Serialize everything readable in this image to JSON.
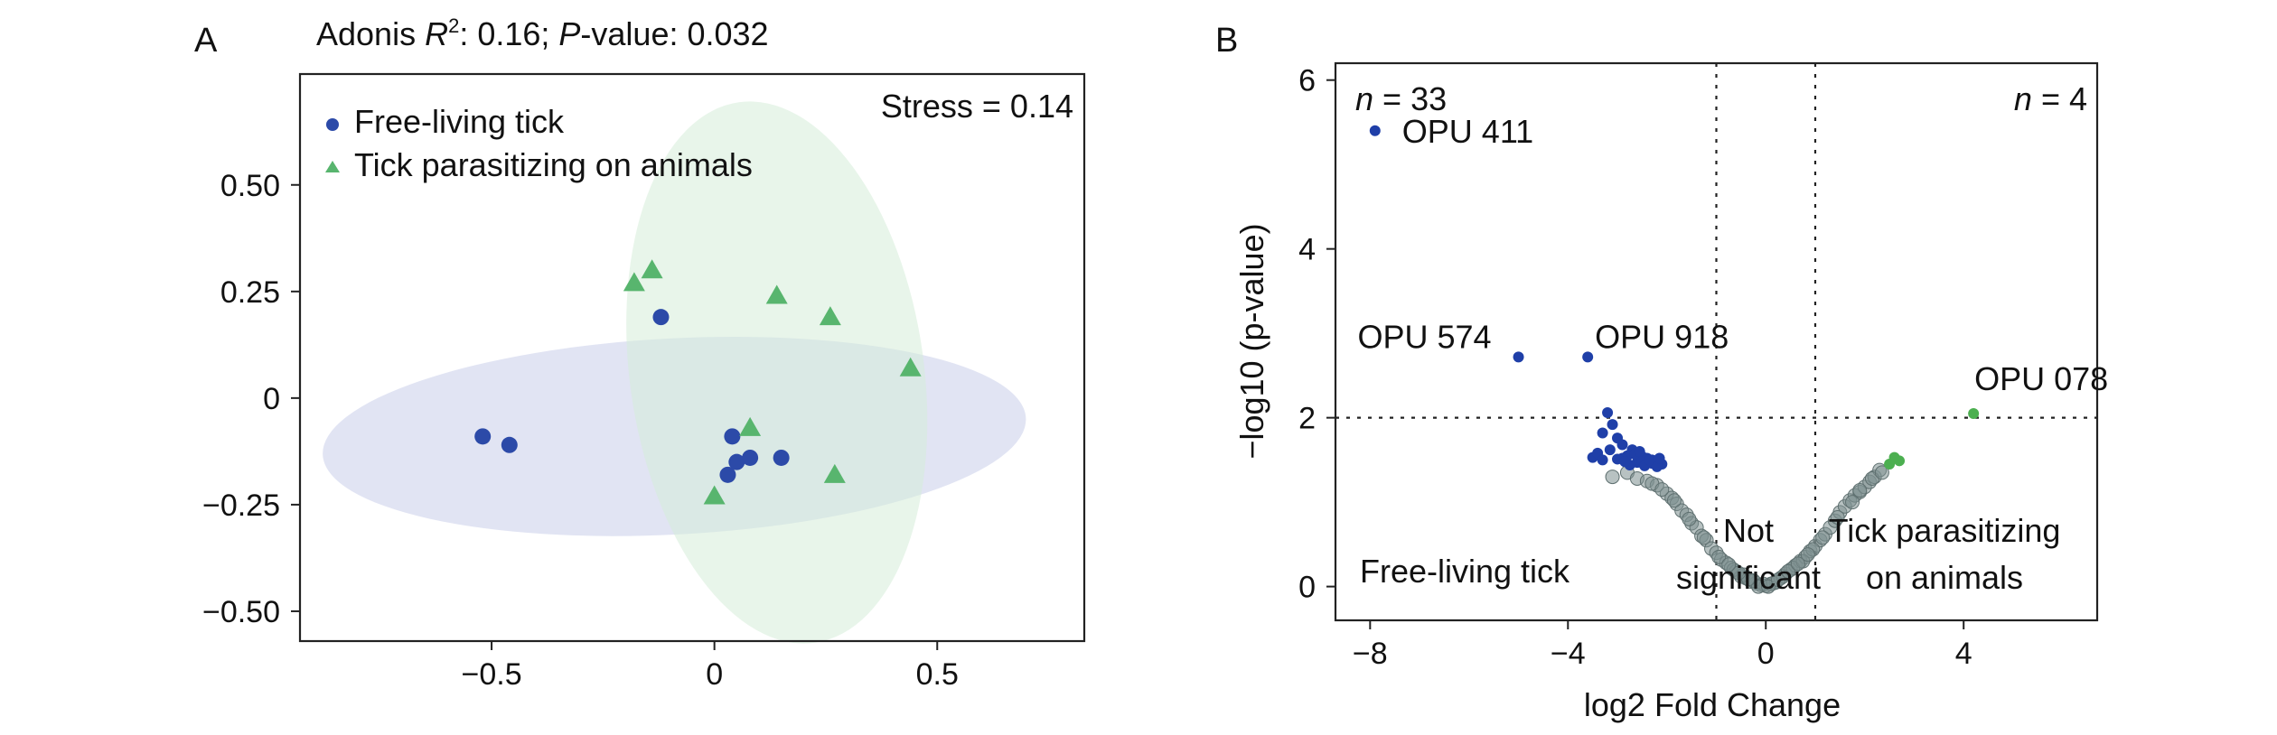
{
  "colors": {
    "free": "#2c4aa8",
    "tick": "#58b56e",
    "free_ellipse": "#c8cdea",
    "tick_ellipse": "#d6ecd8",
    "ns": "#7d8f8f",
    "volcano_free": "#1f3fa8",
    "volcano_tick": "#4caf50"
  },
  "chart_data": [
    {
      "panel": "A",
      "type": "scatter",
      "title": "Adonis R²: 0.16; P-value: 0.032",
      "title_parts": {
        "a": "Adonis ",
        "r": "R",
        "sup": "2",
        "b": ": 0.16; ",
        "p": "P",
        "c": "-value: 0.032"
      },
      "stress_label": "Stress = 0.14",
      "xlabel": "",
      "ylabel": "",
      "xlim": [
        -0.93,
        0.83
      ],
      "ylim": [
        -0.57,
        0.76
      ],
      "xticks": [
        -0.5,
        0,
        0.5
      ],
      "xtick_labels": [
        "−0.5",
        "0",
        "0.5"
      ],
      "yticks": [
        -0.5,
        -0.25,
        0,
        0.25,
        0.5
      ],
      "ytick_labels": [
        "−0.50",
        "−0.25",
        "0",
        "0.25",
        "0.50"
      ],
      "legend": {
        "position": "top-left"
      },
      "series": [
        {
          "name": "Free-living tick",
          "marker": "circle",
          "color_key": "free",
          "x": [
            -0.52,
            -0.46,
            -0.12,
            0.04,
            0.05,
            0.08,
            0.03,
            0.15
          ],
          "y": [
            -0.09,
            -0.11,
            0.19,
            -0.09,
            -0.15,
            -0.14,
            -0.18,
            -0.14
          ]
        },
        {
          "name": "Tick parasitizing on animals",
          "marker": "triangle",
          "color_key": "tick",
          "x": [
            -0.18,
            -0.14,
            0.14,
            0.26,
            0.44,
            0.08,
            0.27,
            0.0
          ],
          "y": [
            0.27,
            0.3,
            0.24,
            0.19,
            0.07,
            -0.07,
            -0.18,
            -0.23
          ]
        }
      ],
      "ellipses": [
        {
          "series": "Free-living tick",
          "cx": -0.09,
          "cy": -0.09,
          "rx": 0.79,
          "ry": 0.23,
          "angle_deg": -3
        },
        {
          "series": "Tick parasitizing on animals",
          "cx": 0.14,
          "cy": 0.06,
          "rx": 0.33,
          "ry": 0.64,
          "angle_deg": -8
        }
      ]
    },
    {
      "panel": "B",
      "type": "scatter",
      "xlabel": "log2 Fold Change",
      "ylabel": "−log10 (p-value)",
      "xlim": [
        -8.7,
        6.7
      ],
      "ylim": [
        -0.4,
        6.2
      ],
      "xticks": [
        -8,
        -4,
        0,
        4
      ],
      "xtick_labels": [
        "−8",
        "−4",
        "0",
        "4"
      ],
      "yticks": [
        0,
        2,
        4,
        6
      ],
      "ytick_labels": [
        "0",
        "2",
        "4",
        "6"
      ],
      "thresholds": {
        "x": [
          -1,
          1
        ],
        "y": 2
      },
      "n_left": "33",
      "n_right": "4",
      "region_labels": {
        "free": "Free-living tick",
        "ns_1": "Not",
        "ns_2": "significant",
        "tick_1": "Tick parasitizing",
        "tick_2": "on animals"
      },
      "labeled_points": [
        {
          "label": "OPU 411",
          "x": -7.9,
          "y": 5.4,
          "color_key": "volcano_free"
        },
        {
          "label": "OPU 574",
          "x": -5.0,
          "y": 2.72,
          "color_key": "volcano_free"
        },
        {
          "label": "OPU 918",
          "x": -3.6,
          "y": 2.72,
          "color_key": "volcano_free"
        },
        {
          "label": "OPU 078",
          "x": 4.2,
          "y": 2.05,
          "color_key": "volcano_tick"
        }
      ],
      "series": [
        {
          "name": "Free-living tick",
          "color_key": "volcano_free",
          "x": [
            -7.9,
            -5.0,
            -3.6,
            -3.2,
            -3.1,
            -3.3,
            -3.0,
            -2.9,
            -2.7,
            -2.6,
            -2.5,
            -2.4,
            -2.3,
            -2.2,
            -2.8,
            -3.5,
            -3.4,
            -2.1,
            -2.6,
            -3.3,
            -2.9,
            -2.5,
            -2.3,
            -3.0,
            -2.75,
            -2.45,
            -2.2,
            -2.65,
            -3.15,
            -2.35,
            -2.15,
            -2.85,
            -2.55
          ],
          "y": [
            5.4,
            2.72,
            2.72,
            2.06,
            1.92,
            1.82,
            1.76,
            1.68,
            1.62,
            1.58,
            1.54,
            1.52,
            1.5,
            1.48,
            1.55,
            1.53,
            1.58,
            1.45,
            1.47,
            1.5,
            1.52,
            1.49,
            1.46,
            1.51,
            1.44,
            1.43,
            1.42,
            1.57,
            1.62,
            1.5,
            1.52,
            1.48,
            1.6
          ]
        },
        {
          "name": "Tick parasitizing on animals",
          "color_key": "volcano_tick",
          "x": [
            4.2,
            2.6,
            2.7,
            2.5
          ],
          "y": [
            2.05,
            1.53,
            1.49,
            1.45
          ]
        },
        {
          "name": "Not significant",
          "color_key": "ns",
          "x": [
            -3.1,
            -2.8,
            -2.6,
            -2.4,
            -2.2,
            -2.0,
            -1.9,
            -1.8,
            -1.7,
            -1.6,
            -1.5,
            -1.4,
            -1.3,
            -1.2,
            -1.1,
            -1.0,
            -0.9,
            -0.8,
            -0.7,
            -0.6,
            -0.5,
            -0.4,
            -0.3,
            -0.2,
            -0.1,
            0.0,
            0.1,
            0.2,
            0.3,
            0.4,
            0.5,
            0.6,
            0.7,
            0.8,
            0.9,
            1.0,
            1.1,
            1.2,
            1.3,
            1.4,
            1.5,
            1.6,
            1.7,
            1.8,
            1.9,
            2.0,
            2.1,
            2.2,
            2.3,
            -1.55,
            -1.25,
            -0.95,
            -0.65,
            -0.45,
            -0.25,
            -0.05,
            0.15,
            0.35,
            0.55,
            0.75,
            0.95,
            1.15,
            1.45,
            1.75,
            -2.3,
            -2.1,
            -1.85,
            2.15,
            2.35,
            1.9,
            -0.15,
            0.05,
            0.25,
            -0.35,
            0.45,
            0.65,
            -0.55,
            -0.75,
            0.85
          ],
          "y": [
            1.3,
            1.35,
            1.28,
            1.25,
            1.2,
            1.1,
            1.05,
            0.98,
            0.9,
            0.85,
            0.75,
            0.7,
            0.6,
            0.55,
            0.45,
            0.4,
            0.32,
            0.28,
            0.22,
            0.18,
            0.12,
            0.1,
            0.06,
            0.04,
            0.02,
            0.01,
            0.03,
            0.05,
            0.1,
            0.15,
            0.2,
            0.25,
            0.3,
            0.35,
            0.42,
            0.48,
            0.55,
            0.62,
            0.7,
            0.78,
            0.88,
            0.95,
            1.02,
            1.08,
            1.12,
            1.18,
            1.24,
            1.3,
            1.38,
            0.8,
            0.58,
            0.35,
            0.2,
            0.14,
            0.07,
            0.03,
            0.04,
            0.12,
            0.22,
            0.3,
            0.44,
            0.58,
            0.82,
            1.0,
            1.22,
            1.15,
            1.02,
            1.28,
            1.35,
            1.14,
            0.0,
            0.0,
            0.08,
            0.09,
            0.18,
            0.27,
            0.16,
            0.26,
            0.38
          ]
        }
      ]
    }
  ]
}
